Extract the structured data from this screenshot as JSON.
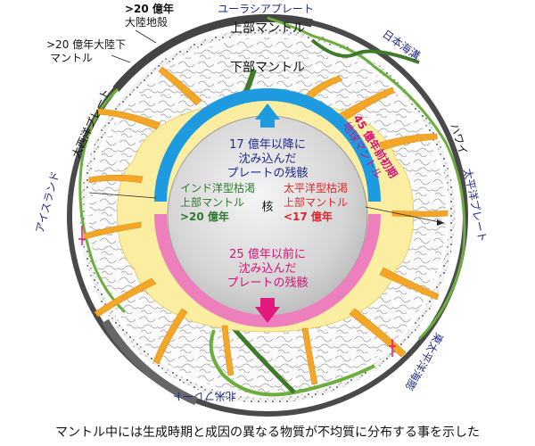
{
  "labels": {
    "eurasia_plate": "ユーラシアプレート",
    "upper_mantle": "上部マントル",
    "lower_mantle": "下部マントル",
    "japan_sea": "日本海溝",
    "crust_age_1": ">20 億年",
    "crust_age_2": "大陸地殻",
    "mantle_age_1": ">20 億年大陸下",
    "mantle_age_2": "マントル",
    "atlantic_plate": "大西洋プレート",
    "iceland": "アイスランド",
    "hawaii": "ハワイ",
    "pacific_plate": "太平洋プレート",
    "east_pacific_rise": "東太平洋海膨",
    "north_america_plate": "北米プレート",
    "early_mantle_1": "45 億年前初期",
    "early_mantle_2": "地球マントル",
    "slab_top_1": "17 億年以降に",
    "slab_top_2": "沈み込んだ",
    "slab_top_3": "プレートの残骸",
    "slab_bottom_1": "25 億年以前に",
    "slab_bottom_2": "沈み込んだ",
    "slab_bottom_3": "プレートの残骸",
    "indian_1": "インド洋型枯渇",
    "indian_2": "上部マントル",
    "indian_3": ">20 億年",
    "pacific_1": "太平洋型枯渇",
    "pacific_2": "上部マントル",
    "pacific_3": "<17 億年",
    "core": "核"
  },
  "caption": "マントル中には生成時期と成因の異なる物質が不均質に分布する事を示した",
  "colors": {
    "core_fill": "#d4d4d4",
    "young_slab": "#1e9be0",
    "old_slab": "#ee7fbd",
    "plume": "#f4a726",
    "plume_halo": "#fbeea0",
    "crust": "#4a4a4a",
    "plate_green": "#6cae3e",
    "dark_blue_text": "#1f2a8a",
    "red_text": "#e0262b",
    "green_text": "#2a7a2a",
    "magenta_text": "#d6127a",
    "arrow_blue": "#1e9be0",
    "arrow_pink": "#e3197d"
  }
}
